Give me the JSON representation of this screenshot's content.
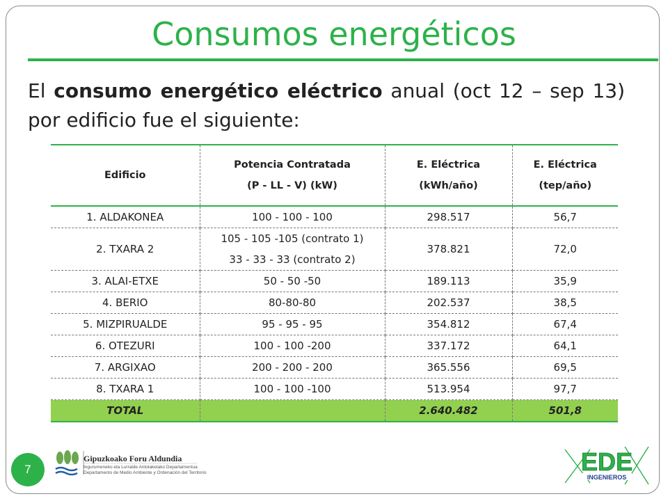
{
  "slide": {
    "title": "Consumos energéticos",
    "intro_lead": "El ",
    "intro_bold": "consumo energético eléctrico",
    "intro_tail": " anual (oct 12 – sep 13) por edificio fue el siguiente:",
    "page_number": "7"
  },
  "table": {
    "headers": [
      [
        "Edificio"
      ],
      [
        "Potencia Contratada",
        "(P - LL - V) (kW)"
      ],
      [
        "E. Eléctrica",
        "(kWh/año)"
      ],
      [
        "E. Eléctrica",
        "(tep/año)"
      ]
    ],
    "rows": [
      {
        "edificio": "1. ALDAKONEA",
        "potencia": "100 - 100 - 100",
        "kwh": "298.517",
        "tep": "56,7"
      },
      {
        "edificio": "2. TXARA 2",
        "potencia": "105 - 105 -105 (contrato 1)",
        "potencia2": "33 - 33 - 33 (contrato 2)",
        "kwh": "378.821",
        "tep": "72,0"
      },
      {
        "edificio": "3. ALAI-ETXE",
        "potencia": "50 - 50 -50",
        "kwh": "189.113",
        "tep": "35,9"
      },
      {
        "edificio": "4. BERIO",
        "potencia": "80-80-80",
        "kwh": "202.537",
        "tep": "38,5"
      },
      {
        "edificio": "5. MIZPIRUALDE",
        "potencia": "95 - 95 - 95",
        "kwh": "354.812",
        "tep": "67,4"
      },
      {
        "edificio": "6. OTEZURI",
        "potencia": "100 - 100 -200",
        "kwh": "337.172",
        "tep": "64,1"
      },
      {
        "edificio": "7. ARGIXAO",
        "potencia": "200 - 200 - 200",
        "kwh": "365.556",
        "tep": "69,5"
      },
      {
        "edificio": "8. TXARA 1",
        "potencia": "100 - 100 -100",
        "kwh": "513.954",
        "tep": "97,7"
      }
    ],
    "total": {
      "label": "TOTAL",
      "potencia": "",
      "kwh": "2.640.482",
      "tep": "501,8"
    }
  },
  "footer": {
    "gfa_title": "Gipuzkoako Foru Aldundia",
    "gfa_sub1": "Ingurumeneko eta Lurralde Antolaketako Departamentua",
    "gfa_sub2": "Departamento de Medio Ambiente y Ordenación del Territorio",
    "ede_text": "EDE",
    "ede_sub": "INGENIEROS"
  },
  "colors": {
    "accent": "#2db24a",
    "total_fill": "#92d050"
  }
}
